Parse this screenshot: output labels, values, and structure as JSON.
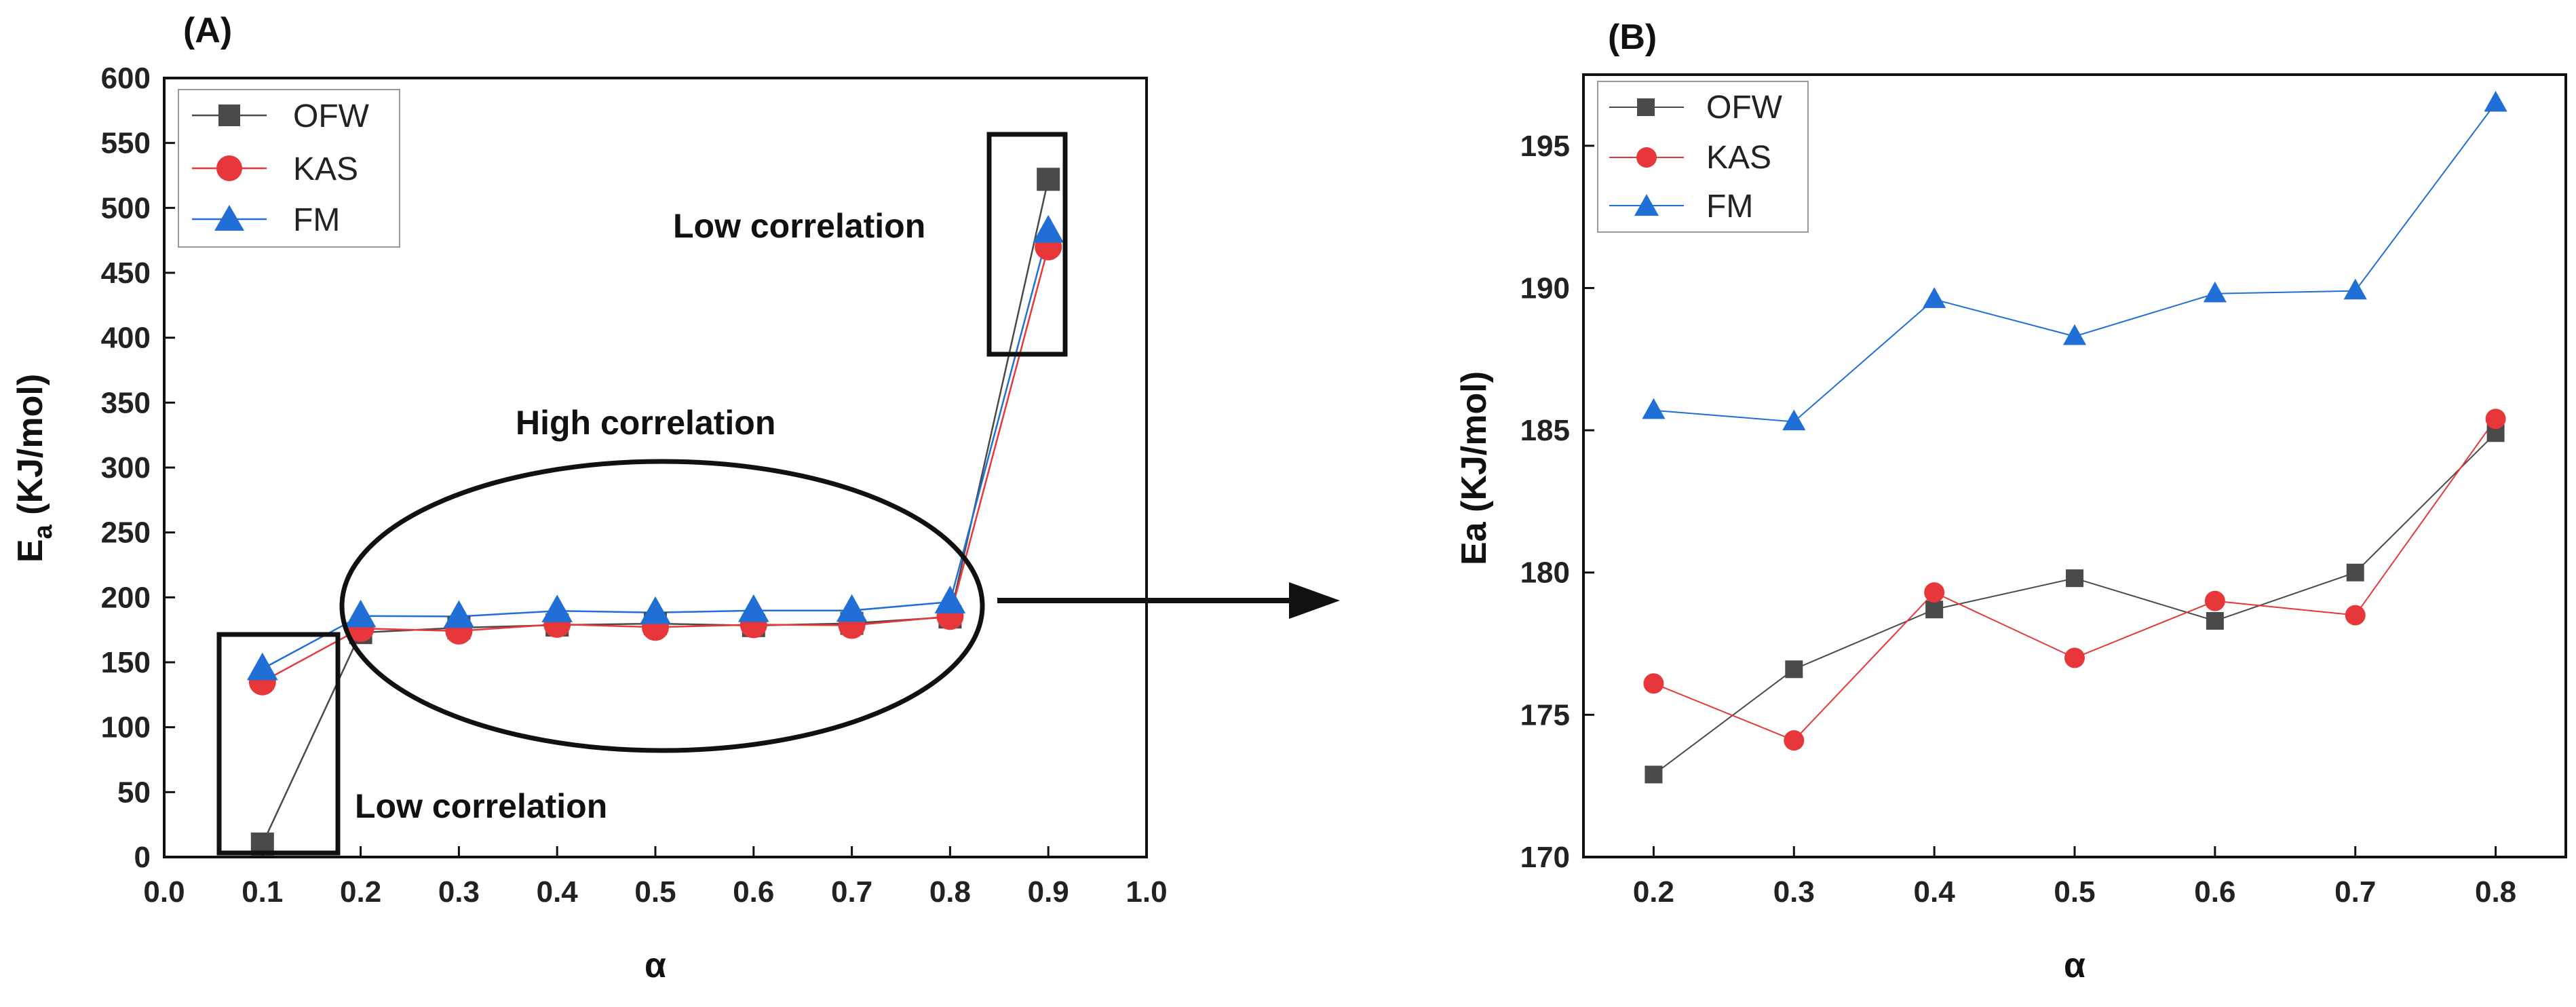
{
  "chart_data": [
    {
      "panel_label": "(A)",
      "type": "line",
      "xlabel": "α",
      "ylabel_main": "E",
      "ylabel_sub": "a",
      "ylabel_rest": " (KJ/mol)",
      "xlim": [
        0.0,
        1.0
      ],
      "ylim": [
        0,
        600
      ],
      "xticks": [
        "0.0",
        "0.1",
        "0.2",
        "0.3",
        "0.4",
        "0.5",
        "0.6",
        "0.7",
        "0.8",
        "0.9",
        "1.0"
      ],
      "yticks": [
        "0",
        "50",
        "100",
        "150",
        "200",
        "250",
        "300",
        "350",
        "400",
        "450",
        "500",
        "550",
        "600"
      ],
      "x": [
        0.1,
        0.2,
        0.3,
        0.4,
        0.5,
        0.6,
        0.7,
        0.8,
        0.9
      ],
      "series": [
        {
          "name": "OFW",
          "marker": "square",
          "color": "#4a4a4a",
          "values": [
            10,
            172.9,
            176.6,
            178.7,
            179.8,
            178.3,
            180.0,
            184.9,
            522
          ]
        },
        {
          "name": "KAS",
          "marker": "circle",
          "color": "#e8373a",
          "values": [
            135,
            176.1,
            174.1,
            179.3,
            177.0,
            179.0,
            178.5,
            185.4,
            470
          ]
        },
        {
          "name": "FM",
          "marker": "triangle",
          "color": "#1f6fd6",
          "values": [
            145,
            185.7,
            185.3,
            189.6,
            188.3,
            189.8,
            189.9,
            196.5,
            482
          ]
        }
      ],
      "legend_position": "top-left",
      "annotations": {
        "low_top": "Low correlation",
        "high": "High correlation",
        "low_bottom": "Low correlation"
      }
    },
    {
      "panel_label": "(B)",
      "type": "line",
      "xlabel": "α",
      "ylabel": "Ea (KJ/mol)",
      "xlim": [
        0.15,
        0.85
      ],
      "ylim": [
        170,
        197.5
      ],
      "xticks": [
        "0.2",
        "0.3",
        "0.4",
        "0.5",
        "0.6",
        "0.7",
        "0.8"
      ],
      "yticks": [
        "170",
        "175",
        "180",
        "185",
        "190",
        "195"
      ],
      "x": [
        0.2,
        0.3,
        0.4,
        0.5,
        0.6,
        0.7,
        0.8
      ],
      "series": [
        {
          "name": "OFW",
          "marker": "square",
          "color": "#4a4a4a",
          "values": [
            172.9,
            176.6,
            178.7,
            179.8,
            178.3,
            180.0,
            184.9
          ]
        },
        {
          "name": "KAS",
          "marker": "circle",
          "color": "#e8373a",
          "values": [
            176.1,
            174.1,
            179.3,
            177.0,
            179.0,
            178.5,
            185.4
          ]
        },
        {
          "name": "FM",
          "marker": "triangle",
          "color": "#1f6fd6",
          "values": [
            185.7,
            185.3,
            189.6,
            188.3,
            189.8,
            189.9,
            196.5
          ]
        }
      ],
      "legend_position": "top-left"
    }
  ]
}
